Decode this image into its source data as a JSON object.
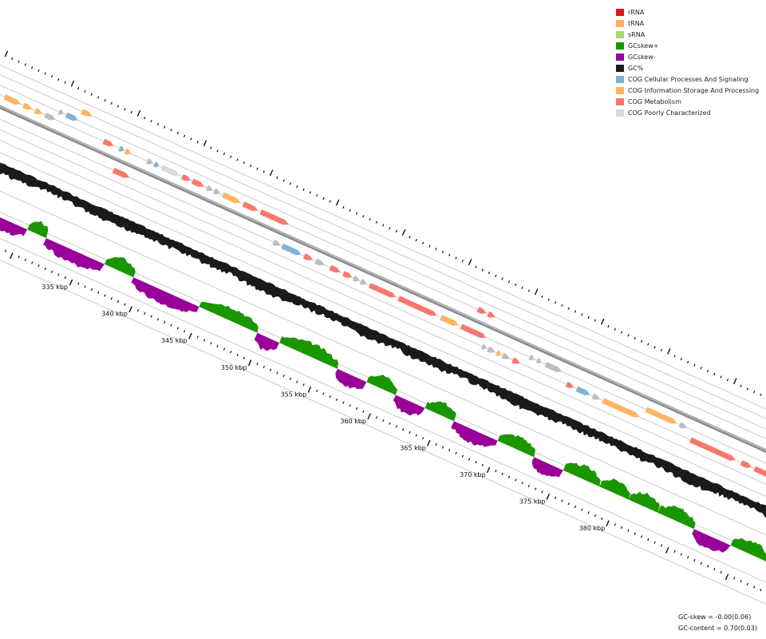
{
  "legend": [
    {
      "label": "rRNA",
      "color": "#d7191c"
    },
    {
      "label": "tRNA",
      "color": "#fdae61"
    },
    {
      "label": "sRNA",
      "color": "#a6d96a"
    },
    {
      "label": "GCskew+",
      "color": "#1a9600"
    },
    {
      "label": "GCskew-",
      "color": "#990099"
    },
    {
      "label": "GC%",
      "color": "#1a1a1a"
    },
    {
      "label": "COG Cellular Processes And Signaling",
      "color": "#7fb1d6"
    },
    {
      "label": "COG Information Storage And Processing",
      "color": "#fdb462"
    },
    {
      "label": "COG Metabolism",
      "color": "#f8786d"
    },
    {
      "label": "COG Poorly Characterized",
      "color": "#d9d9d9"
    }
  ],
  "stats": {
    "gc_skew": "GC-skew = -0.00(0.06)",
    "gc_content": "GC-content = 0.70(0.03)"
  },
  "ticks": [
    "335 kbp",
    "340 kbp",
    "345 kbp",
    "350 kbp",
    "355 kbp",
    "360 kbp",
    "365 kbp",
    "370 kbp",
    "375 kbp",
    "380 kbp"
  ],
  "colors": {
    "backbone": "#8c8c8c",
    "guide_line": "#bdbdbd",
    "uncategorized": "#bdbdbd",
    "tick": "#111111"
  }
}
